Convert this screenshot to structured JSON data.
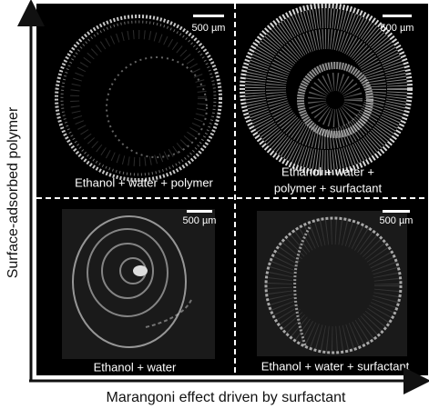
{
  "axes": {
    "y_label": "Surface-adsorbed polymer",
    "x_label": "Marangoni effect driven by surfactant"
  },
  "panels": [
    {
      "caption": [
        "Ethanol + water + polymer"
      ],
      "scale_bar": "500 µm"
    },
    {
      "caption": [
        "Ethanol + water +",
        "polymer + surfactant"
      ],
      "scale_bar": "500 µm"
    },
    {
      "caption": [
        "Ethanol + water"
      ],
      "scale_bar": "500 µm"
    },
    {
      "caption": [
        "Ethanol + water + surfactant"
      ],
      "scale_bar": "500 µm"
    }
  ]
}
